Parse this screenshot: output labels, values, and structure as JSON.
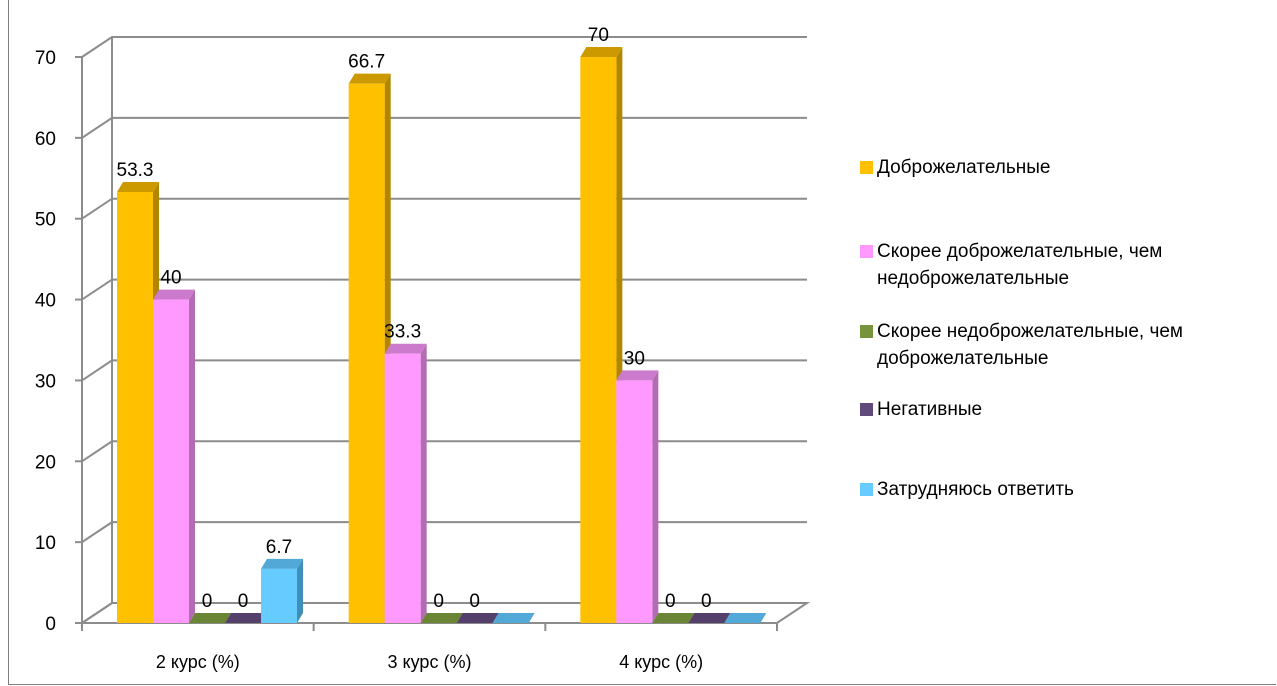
{
  "chart_data": {
    "type": "bar",
    "categories": [
      "2 курс (%)",
      "3 курс (%)",
      "4 курс (%)"
    ],
    "series": [
      {
        "name": "Доброжелательные",
        "values": [
          53.3,
          66.7,
          70
        ],
        "color": "#FFC000",
        "side": "#B38600",
        "top": "#CC9A00"
      },
      {
        "name": "Скорее доброжелательные, чем недоброжелательные",
        "values": [
          40,
          33.3,
          30
        ],
        "color": "#FF99FF",
        "side": "#B36BB3",
        "top": "#CC7ACC"
      },
      {
        "name": "Скорее недоброжелательные, чем доброжелательные",
        "values": [
          0,
          0,
          0
        ],
        "color": "#77933C",
        "side": "#56702A",
        "top": "#6A8534"
      },
      {
        "name": "Негативные",
        "values": [
          0,
          0,
          0
        ],
        "color": "#604A7B",
        "side": "#463658",
        "top": "#54406B"
      },
      {
        "name": "Затрудняюсь ответить",
        "values": [
          6.7,
          0,
          0
        ],
        "color": "#66CCFF",
        "side": "#3F8FB8",
        "top": "#52A8D6"
      }
    ],
    "data_labels": [
      [
        "53.3",
        "66.7",
        "70"
      ],
      [
        "40",
        "33.3",
        "30"
      ],
      [
        "0",
        "0",
        "0"
      ],
      [
        "0",
        "0",
        "0"
      ],
      [
        "6.7",
        "",
        ""
      ]
    ],
    "y_ticks": [
      "0",
      "10",
      "20",
      "30",
      "40",
      "50",
      "60",
      "70"
    ],
    "ylim": [
      0,
      70
    ],
    "grid": true,
    "legend_position": "right"
  }
}
